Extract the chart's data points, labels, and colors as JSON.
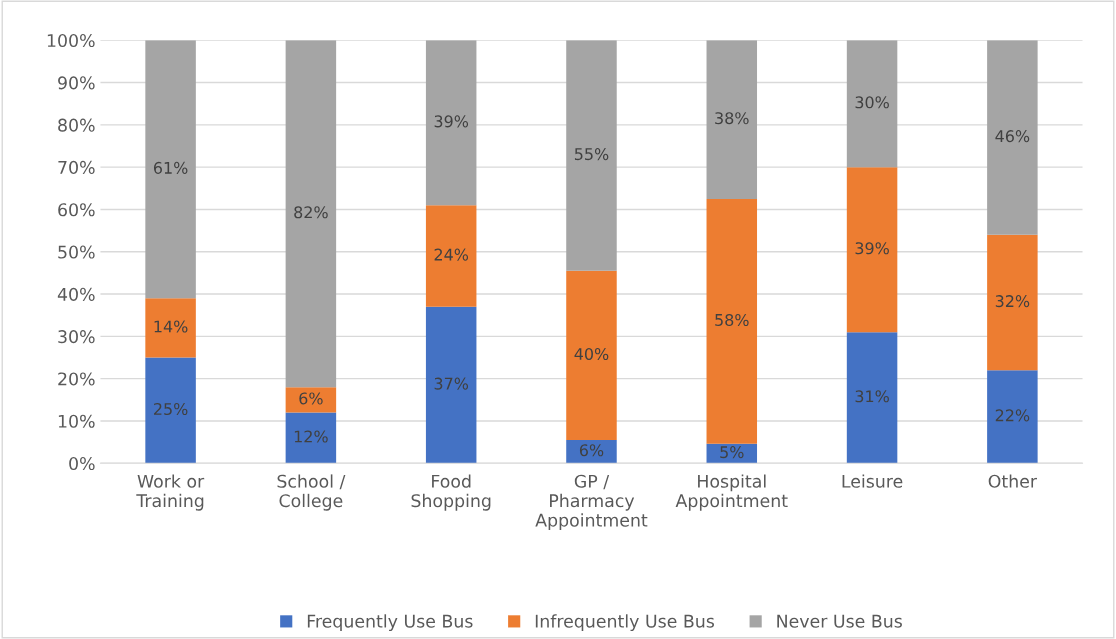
{
  "chart_data": {
    "type": "bar",
    "stacked": true,
    "categories": [
      "Work or\nTraining",
      "School /\nCollege",
      "Food\nShopping",
      "GP /\nPharmacy\nAppointment",
      "Hospital\nAppointment",
      "Leisure",
      "Other"
    ],
    "series": [
      {
        "name": "Frequently Use Bus",
        "color": "#4472c4",
        "values": [
          25,
          12,
          37,
          5.5,
          4.6,
          31,
          22
        ],
        "value_labels": [
          "25%",
          "12%",
          "37%",
          "6%",
          "5%",
          "31%",
          "22%"
        ]
      },
      {
        "name": "Infrequently Use Bus",
        "color": "#ed7d31",
        "values": [
          14,
          6,
          24,
          40,
          57.9,
          39,
          32
        ],
        "value_labels": [
          "14%",
          "6%",
          "24%",
          "40%",
          "58%",
          "39%",
          "32%"
        ]
      },
      {
        "name": "Never Use Bus",
        "color": "#a5a5a5",
        "values": [
          61,
          82,
          39,
          54.5,
          37.5,
          30,
          46
        ],
        "value_labels": [
          "61%",
          "82%",
          "39%",
          "55%",
          "38%",
          "30%",
          "46%"
        ]
      }
    ],
    "ylim": [
      0,
      100
    ],
    "yticks": [
      {
        "value": 0,
        "label": "0%"
      },
      {
        "value": 10,
        "label": "10%"
      },
      {
        "value": 20,
        "label": "20%"
      },
      {
        "value": 30,
        "label": "30%"
      },
      {
        "value": 40,
        "label": "40%"
      },
      {
        "value": 50,
        "label": "50%"
      },
      {
        "value": 60,
        "label": "60%"
      },
      {
        "value": 70,
        "label": "70%"
      },
      {
        "value": 80,
        "label": "80%"
      },
      {
        "value": 90,
        "label": "90%"
      },
      {
        "value": 100,
        "label": "100%"
      }
    ],
    "grid": "y",
    "legend": "bottom"
  }
}
